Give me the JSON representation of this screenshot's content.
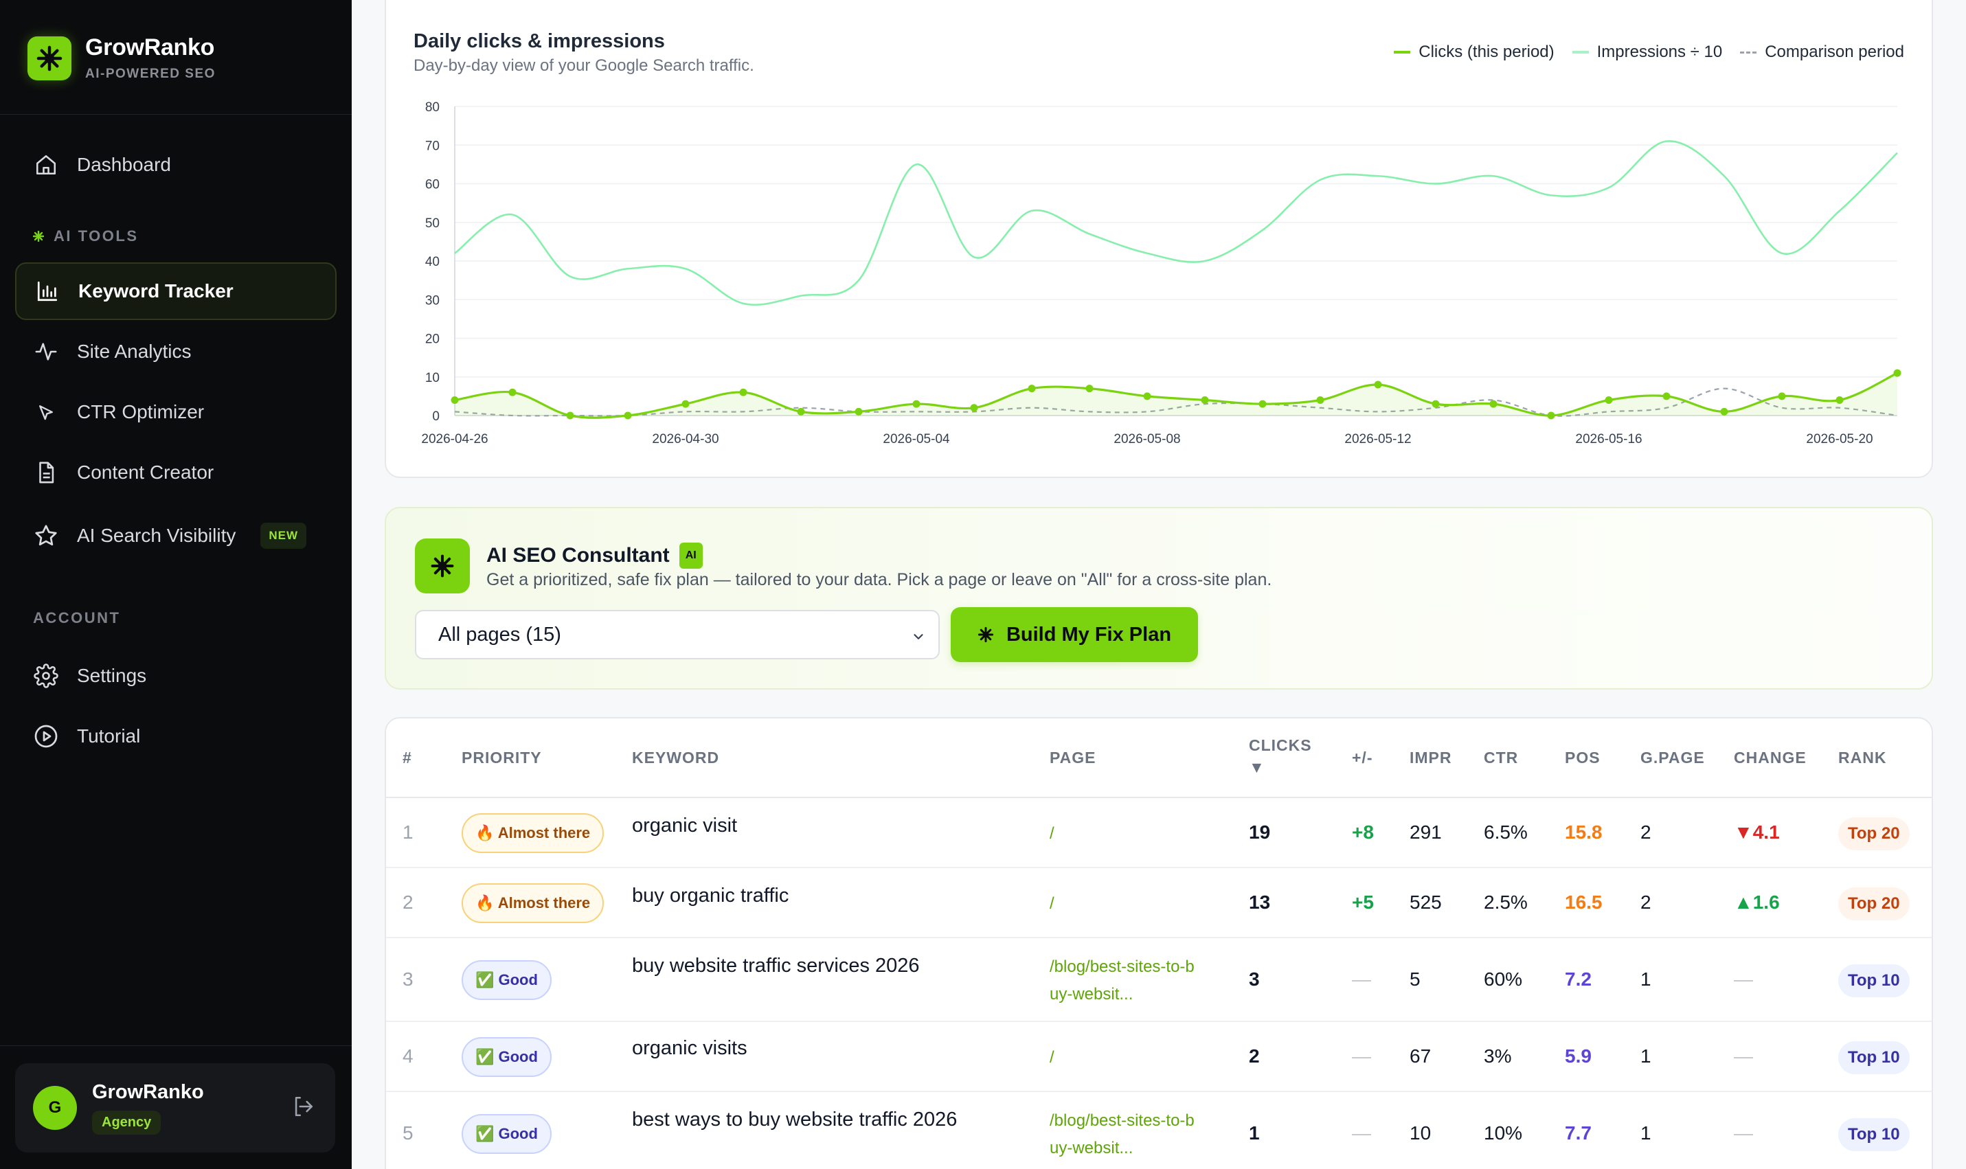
{
  "brand": {
    "name": "GrowRanko",
    "tagline": "AI-POWERED SEO"
  },
  "sidebar": {
    "dashboard": "Dashboard",
    "ai_tools_label": "AI TOOLS",
    "items": [
      {
        "label": "Keyword Tracker",
        "icon": "bar-chart-icon",
        "active": true
      },
      {
        "label": "Site Analytics",
        "icon": "pulse-icon"
      },
      {
        "label": "CTR Optimizer",
        "icon": "cursor-icon"
      },
      {
        "label": "Content Creator",
        "icon": "document-icon"
      },
      {
        "label": "AI Search Visibility",
        "icon": "star-icon",
        "badge": "NEW"
      }
    ],
    "account_label": "ACCOUNT",
    "account_items": [
      {
        "label": "Settings",
        "icon": "gear-icon"
      },
      {
        "label": "Tutorial",
        "icon": "play-icon"
      }
    ],
    "user": {
      "initial": "G",
      "name": "GrowRanko",
      "plan": "Agency"
    }
  },
  "chart": {
    "title": "Daily clicks & impressions",
    "subtitle": "Day-by-day view of your Google Search traffic.",
    "legend": [
      "Clicks (this period)",
      "Impressions ÷ 10",
      "Comparison period"
    ]
  },
  "chart_data": {
    "type": "line",
    "x": [
      "2026-04-26",
      "2026-04-27",
      "2026-04-28",
      "2026-04-29",
      "2026-04-30",
      "2026-05-01",
      "2026-05-02",
      "2026-05-03",
      "2026-05-04",
      "2026-05-05",
      "2026-05-06",
      "2026-05-07",
      "2026-05-08",
      "2026-05-09",
      "2026-05-10",
      "2026-05-11",
      "2026-05-12",
      "2026-05-13",
      "2026-05-14",
      "2026-05-15",
      "2026-05-16",
      "2026-05-17",
      "2026-05-18",
      "2026-05-19",
      "2026-05-20",
      "2026-05-21"
    ],
    "x_tick_labels": [
      "2026-04-26",
      "2026-04-30",
      "2026-05-04",
      "2026-05-08",
      "2026-05-12",
      "2026-05-16",
      "2026-05-20"
    ],
    "series": [
      {
        "name": "Clicks (this period)",
        "color": "#7bd30f",
        "values": [
          4,
          6,
          0,
          0,
          3,
          6,
          1,
          1,
          3,
          2,
          7,
          7,
          5,
          4,
          3,
          4,
          8,
          3,
          3,
          0,
          4,
          5,
          1,
          5,
          4,
          11
        ]
      },
      {
        "name": "Impressions ÷ 10",
        "color": "#86efac",
        "values": [
          42,
          52,
          36,
          38,
          38,
          29,
          31,
          35,
          65,
          41,
          53,
          47,
          42,
          40,
          48,
          61,
          62,
          60,
          62,
          57,
          59,
          71,
          62,
          42,
          53,
          68
        ]
      },
      {
        "name": "Comparison period",
        "color": "#9ca3af",
        "dashed": true,
        "values": [
          1,
          0,
          0,
          0,
          1,
          1,
          2,
          1,
          1,
          1,
          2,
          1,
          1,
          3,
          3,
          2,
          1,
          2,
          4,
          0,
          1,
          2,
          7,
          2,
          2,
          0
        ]
      }
    ],
    "ylim": [
      0,
      80
    ],
    "yticks": [
      0,
      10,
      20,
      30,
      40,
      50,
      60,
      70,
      80
    ],
    "grid": true,
    "legend_position": "top-right"
  },
  "consultant": {
    "title": "AI SEO Consultant",
    "ai_badge": "AI",
    "description": "Get a prioritized, safe fix plan — tailored to your data. Pick a page or leave on \"All\" for a cross-site plan.",
    "select_value": "All pages (15)",
    "button_label": "Build My Fix Plan"
  },
  "table": {
    "headers": [
      "#",
      "PRIORITY",
      "KEYWORD",
      "PAGE",
      "CLICKS",
      "▼",
      "+/-",
      "IMPR",
      "CTR",
      "POS",
      "G.PAGE",
      "CHANGE",
      "RANK"
    ],
    "rows": [
      {
        "num": "1",
        "priority": "🔥 Almost there",
        "keyword": "organic visit",
        "page1": "/",
        "page2": "",
        "clicks": "19",
        "delta": "+8",
        "impr": "291",
        "ctr": "6.5%",
        "pos": "15.8",
        "gpage": "2",
        "change": "▼4.1",
        "rank": "Top 20"
      },
      {
        "num": "2",
        "priority": "🔥 Almost there",
        "keyword": "buy organic traffic",
        "page1": "/",
        "page2": "",
        "clicks": "13",
        "delta": "+5",
        "impr": "525",
        "ctr": "2.5%",
        "pos": "16.5",
        "gpage": "2",
        "change": "▲1.6",
        "rank": "Top 20"
      },
      {
        "num": "3",
        "priority": "✅ Good",
        "keyword": "buy website traffic services 2026",
        "page1": "/blog/best-sites-to-b",
        "page2": "uy-websit...",
        "clicks": "3",
        "delta": "—",
        "impr": "5",
        "ctr": "60%",
        "pos": "7.2",
        "gpage": "1",
        "change": "—",
        "rank": "Top 10"
      },
      {
        "num": "4",
        "priority": "✅ Good",
        "keyword": "organic visits",
        "page1": "/",
        "page2": "",
        "clicks": "2",
        "delta": "—",
        "impr": "67",
        "ctr": "3%",
        "pos": "5.9",
        "gpage": "1",
        "change": "—",
        "rank": "Top 10"
      },
      {
        "num": "5",
        "priority": "✅ Good",
        "keyword": "best ways to buy website traffic 2026",
        "page1": "/blog/best-sites-to-b",
        "page2": "uy-websit...",
        "clicks": "1",
        "delta": "—",
        "impr": "10",
        "ctr": "10%",
        "pos": "7.7",
        "gpage": "1",
        "change": "—",
        "rank": "Top 10"
      }
    ]
  }
}
